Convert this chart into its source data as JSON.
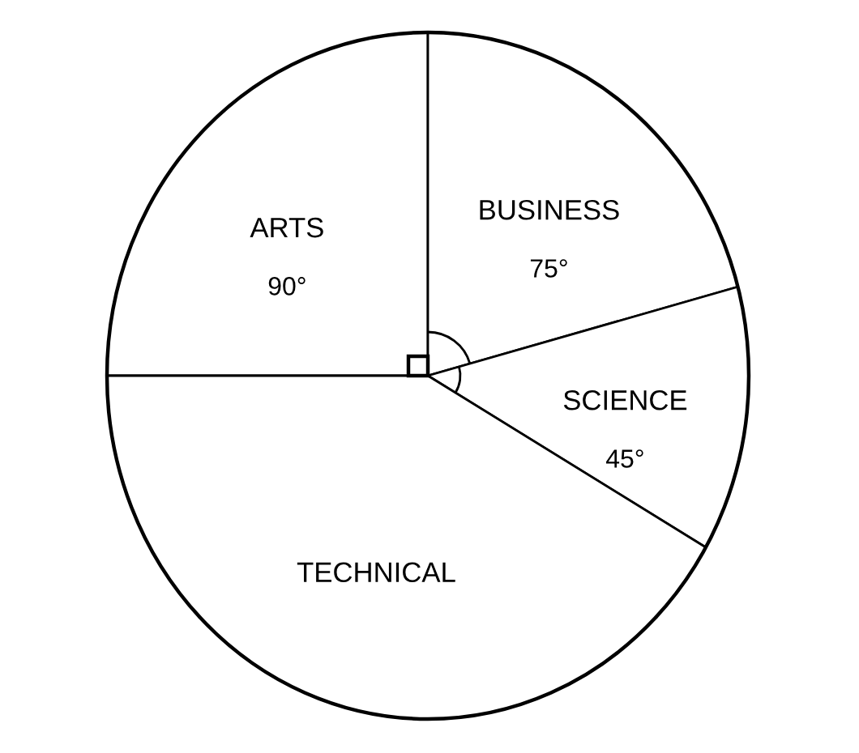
{
  "chart_data": {
    "type": "pie",
    "categories": [
      "ARTS",
      "BUSINESS",
      "SCIENCE",
      "TECHNICAL"
    ],
    "values": [
      90,
      75,
      45,
      150
    ],
    "value_labels": [
      "90°",
      "75°",
      "45°",
      null
    ],
    "colors": [
      "#ffffff",
      "#ffffff",
      "#ffffff",
      "#ffffff"
    ]
  }
}
